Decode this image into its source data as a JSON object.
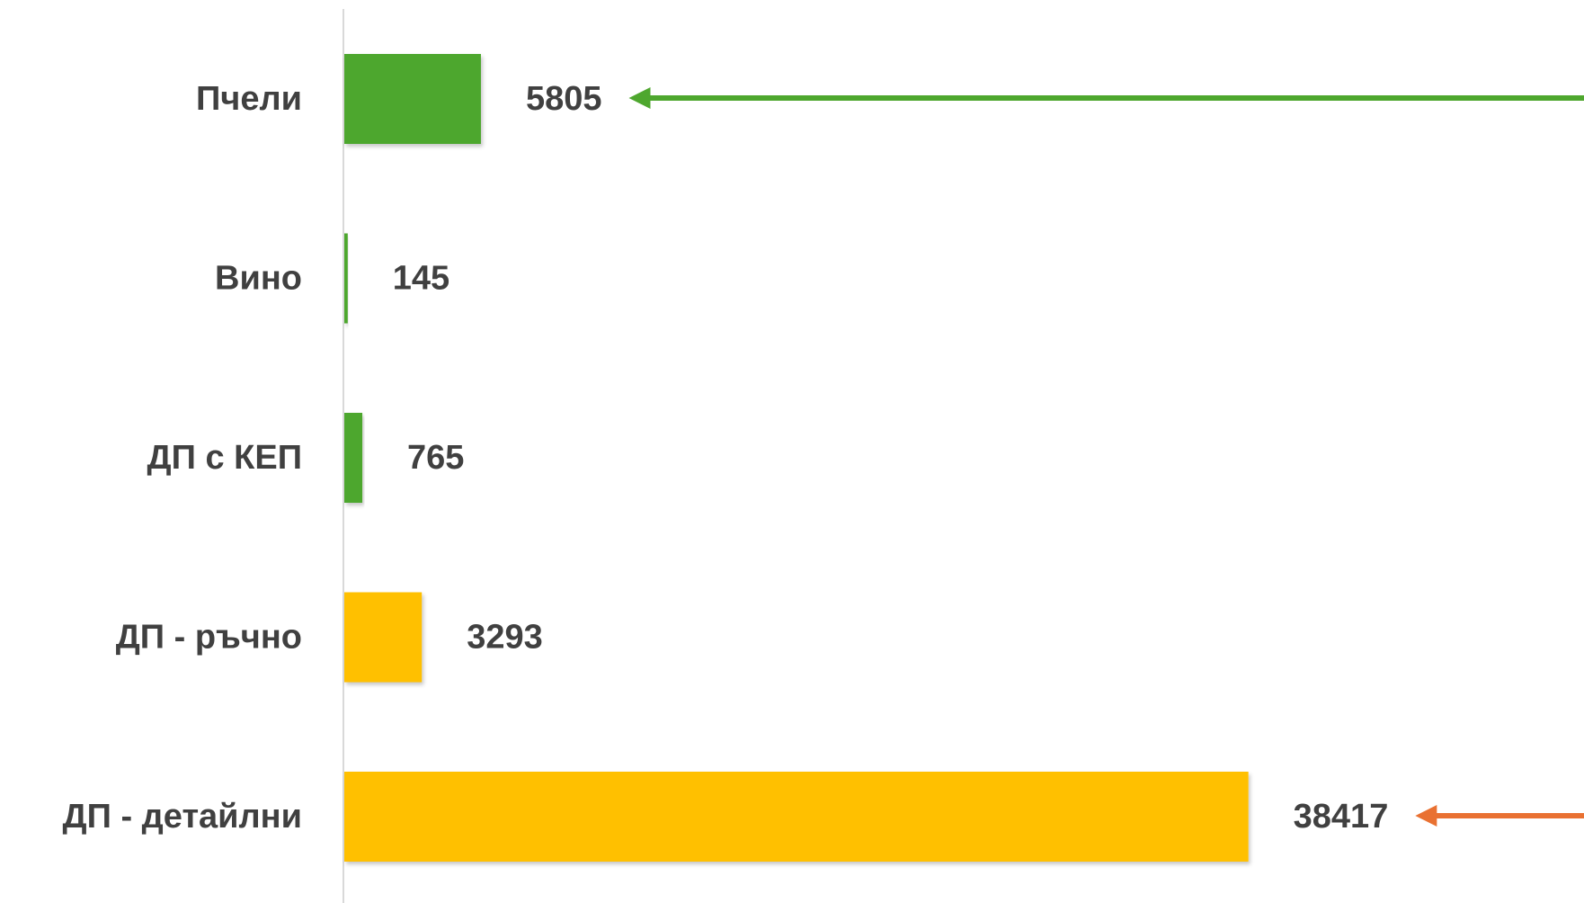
{
  "chart_data": {
    "type": "bar",
    "orientation": "horizontal",
    "categories": [
      "Пчели",
      "Вино",
      "ДП с КЕП",
      "ДП - ръчно",
      "ДП - детайлни"
    ],
    "values": [
      5805,
      145,
      765,
      3293,
      38417
    ],
    "bar_colors": [
      "#4EA72E",
      "#4EA72E",
      "#4EA72E",
      "#FFC000",
      "#FFC000"
    ],
    "data_labels": [
      "5805",
      "145",
      "765",
      "3293",
      "38417"
    ],
    "annotations": [
      {
        "type": "arrow",
        "points_to": "Пчели",
        "color": "#4EA72E"
      },
      {
        "type": "arrow",
        "points_to": "ДП - детайлни",
        "color": "#E97132"
      }
    ],
    "xlim": [
      0,
      45000
    ],
    "grid": false,
    "legend": "none",
    "title": "",
    "xlabel": "",
    "ylabel": ""
  }
}
